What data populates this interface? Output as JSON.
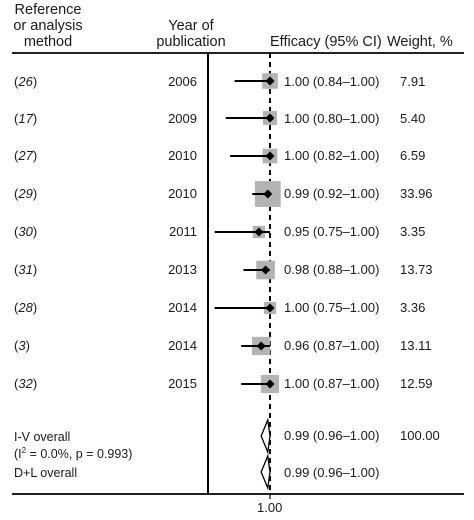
{
  "header": {
    "ref_col": [
      "Reference",
      "or analysis",
      "method"
    ],
    "year_col": [
      "Year of",
      "publication"
    ],
    "effect_col": "Efficacy (95% CI)",
    "weight_col": "Weight, %"
  },
  "rows": [
    {
      "ref": "26",
      "year": "2006",
      "ci_text": "1.00 (0.84–1.00)",
      "weight": "7.91"
    },
    {
      "ref": "17",
      "year": "2009",
      "ci_text": "1.00 (0.80–1.00)",
      "weight": "5.40"
    },
    {
      "ref": "27",
      "year": "2010",
      "ci_text": "1.00 (0.82–1.00)",
      "weight": "6.59"
    },
    {
      "ref": "29",
      "year": "2010",
      "ci_text": "0.99 (0.92–1.00)",
      "weight": "33.96"
    },
    {
      "ref": "30",
      "year": "2011",
      "ci_text": "0.95 (0.75–1.00)",
      "weight": "3.35"
    },
    {
      "ref": "31",
      "year": "2013",
      "ci_text": "0.98 (0.88–1.00)",
      "weight": "13.73"
    },
    {
      "ref": "28",
      "year": "2014",
      "ci_text": "1.00 (0.75–1.00)",
      "weight": "3.36"
    },
    {
      "ref": "3",
      "year": "2014",
      "ci_text": "0.96 (0.87–1.00)",
      "weight": "13.11"
    },
    {
      "ref": "32",
      "year": "2015",
      "ci_text": "1.00 (0.87–1.00)",
      "weight": "12.59"
    }
  ],
  "overall": [
    {
      "label": "I-V overall",
      "sub_pre": "(I",
      "sub_sup": "2",
      "sub_post": " = 0.0%, p = 0.993)",
      "ci_text": "0.99 (0.96–1.00)",
      "weight": "100.00"
    },
    {
      "label": "D+L overall",
      "ci_text": "0.99 (0.96–1.00)",
      "weight": ""
    }
  ],
  "axis": {
    "tick_label": "1.00"
  },
  "colors": {
    "box": "#b3b3b3",
    "line": "#000000"
  },
  "chart_data": {
    "type": "forest",
    "title": "",
    "xlabel": "",
    "null_line": 1.0,
    "xlim": [
      0.72,
      1.03
    ],
    "xticks": [
      1.0
    ],
    "studies": [
      {
        "ref": "26",
        "year": 2006,
        "estimate": 1.0,
        "lower": 0.84,
        "upper": 1.0,
        "weight": 7.91
      },
      {
        "ref": "17",
        "year": 2009,
        "estimate": 1.0,
        "lower": 0.8,
        "upper": 1.0,
        "weight": 5.4
      },
      {
        "ref": "27",
        "year": 2010,
        "estimate": 1.0,
        "lower": 0.82,
        "upper": 1.0,
        "weight": 6.59
      },
      {
        "ref": "29",
        "year": 2010,
        "estimate": 0.99,
        "lower": 0.92,
        "upper": 1.0,
        "weight": 33.96
      },
      {
        "ref": "30",
        "year": 2011,
        "estimate": 0.95,
        "lower": 0.75,
        "upper": 1.0,
        "weight": 3.35
      },
      {
        "ref": "31",
        "year": 2013,
        "estimate": 0.98,
        "lower": 0.88,
        "upper": 1.0,
        "weight": 13.73
      },
      {
        "ref": "28",
        "year": 2014,
        "estimate": 1.0,
        "lower": 0.75,
        "upper": 1.0,
        "weight": 3.36
      },
      {
        "ref": "3",
        "year": 2014,
        "estimate": 0.96,
        "lower": 0.87,
        "upper": 1.0,
        "weight": 13.11
      },
      {
        "ref": "32",
        "year": 2015,
        "estimate": 1.0,
        "lower": 0.87,
        "upper": 1.0,
        "weight": 12.59
      }
    ],
    "pooled": [
      {
        "method": "I-V overall",
        "estimate": 0.99,
        "lower": 0.96,
        "upper": 1.0,
        "weight": 100.0,
        "I2": "0.0%",
        "p": 0.993
      },
      {
        "method": "D+L overall",
        "estimate": 0.99,
        "lower": 0.96,
        "upper": 1.0
      }
    ]
  }
}
